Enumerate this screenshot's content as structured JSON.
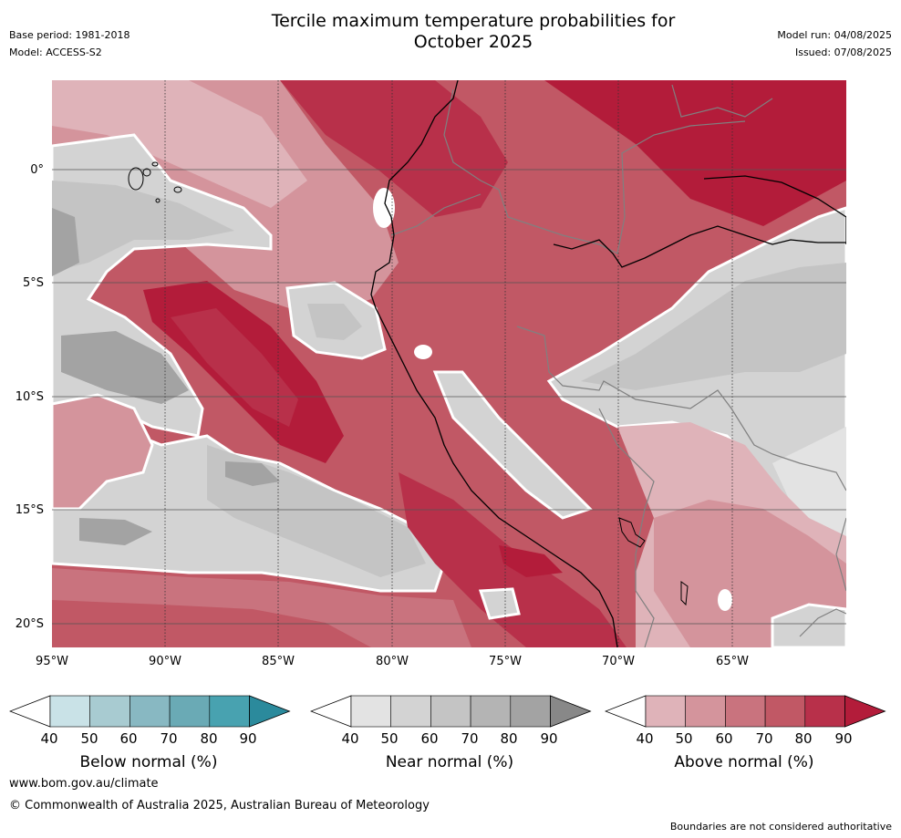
{
  "header": {
    "title_line1": "Tercile maximum temperature probabilities for",
    "title_line2": "October 2025",
    "base_period": "Base period: 1981-2018",
    "model": "Model: ACCESS-S2",
    "model_run": "Model run: 04/08/2025",
    "issued": "Issued: 07/08/2025"
  },
  "map": {
    "latitude_labels": [
      "0°",
      "5°S",
      "10°S",
      "15°S",
      "20°S"
    ],
    "longitude_labels": [
      "95°W",
      "90°W",
      "85°W",
      "80°W",
      "75°W",
      "70°W",
      "65°W"
    ]
  },
  "legend": {
    "colorbars": [
      {
        "title": "Below normal (%)",
        "ticks": [
          "40",
          "50",
          "60",
          "70",
          "80",
          "90"
        ],
        "colors": [
          "#ffffff",
          "#c9e2e7",
          "#a8cbd1",
          "#88b8c2",
          "#6aaab5",
          "#48a2b0",
          "#2b8a9c"
        ]
      },
      {
        "title": "Near normal (%)",
        "ticks": [
          "40",
          "50",
          "60",
          "70",
          "80",
          "90"
        ],
        "colors": [
          "#ffffff",
          "#e3e3e3",
          "#d3d3d3",
          "#c4c4c4",
          "#b4b4b4",
          "#a3a3a3",
          "#888888"
        ]
      },
      {
        "title": "Above normal (%)",
        "ticks": [
          "40",
          "50",
          "60",
          "70",
          "80",
          "90"
        ],
        "colors": [
          "#ffffff",
          "#dfb3b9",
          "#d4949c",
          "#c9737e",
          "#c15865",
          "#b8304a",
          "#b31c3a"
        ]
      }
    ]
  },
  "footer": {
    "url": "www.bom.gov.au/climate",
    "copyright": "© Commonwealth of Australia 2025, Australian Bureau of Meteorology",
    "disclaimer": "Boundaries are not considered authoritative"
  }
}
